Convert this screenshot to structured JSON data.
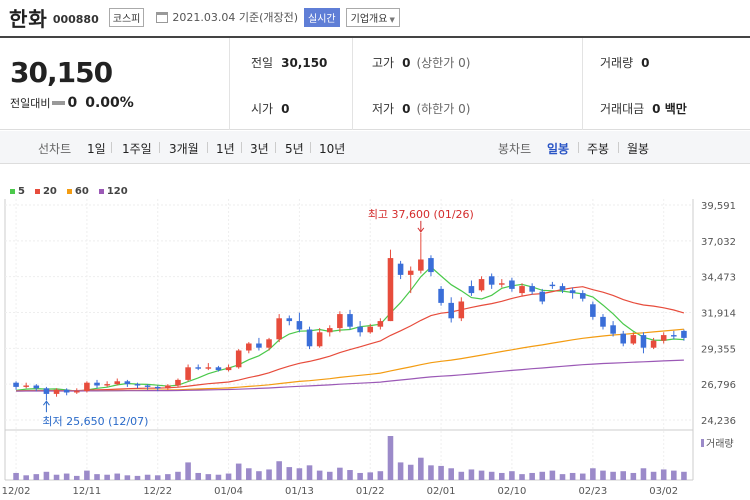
{
  "header": {
    "stock_name": "한화",
    "stock_code": "000880",
    "market": "코스피",
    "date_text": "2021.03.04 기준(개장전)",
    "realtime_label": "실시간",
    "company_info_label": "기업개요"
  },
  "summary": {
    "price": "30,150",
    "change_label": "전일대비",
    "change_value": "0",
    "change_pct": "0.00%",
    "prev_close": {
      "label": "전일",
      "value": "30,150"
    },
    "high": {
      "label": "고가",
      "value": "0",
      "sub": "(상한가 0)"
    },
    "volume": {
      "label": "거래량",
      "value": "0"
    },
    "open": {
      "label": "시가",
      "value": "0"
    },
    "low": {
      "label": "저가",
      "value": "0",
      "sub": "(하한가 0)"
    },
    "trade_amount": {
      "label": "거래대금",
      "value": "0 백만"
    }
  },
  "periods": {
    "line_chart_label": "선차트",
    "line_items": [
      "1일",
      "1주일",
      "3개월",
      "1년",
      "3년",
      "5년",
      "10년"
    ],
    "candle_chart_label": "봉차트",
    "candle_items": [
      "일봉",
      "주봉",
      "월봉"
    ],
    "active_candle": "일봉"
  },
  "legend": [
    {
      "label": "5",
      "color": "#4bc94b"
    },
    {
      "label": "20",
      "color": "#e74c3c"
    },
    {
      "label": "60",
      "color": "#f39c12"
    },
    {
      "label": "120",
      "color": "#9b59b6"
    }
  ],
  "colors": {
    "up": "#e74c3c",
    "down": "#3a6ed8",
    "volume": "#9b8ac9",
    "high_marker": "#d42c2c",
    "low_marker": "#2a6ac9"
  },
  "chart_data": {
    "type": "candlestick",
    "y_ticks": [
      "39,591",
      "37,032",
      "34,473",
      "31,914",
      "29,355",
      "26,796",
      "24,236"
    ],
    "ylim": [
      24236,
      39591
    ],
    "x_ticks": [
      "12/02",
      "12/11",
      "12/22",
      "01/04",
      "01/13",
      "01/22",
      "02/01",
      "02/10",
      "02/23",
      "03/02"
    ],
    "high_annotation": "최고 37,600 (01/26)",
    "low_annotation": "최저 25,650 (12/07)",
    "volume_label": "거래량",
    "candles": [
      {
        "o": 26900,
        "c": 26600,
        "h": 27000,
        "l": 26400
      },
      {
        "o": 26600,
        "c": 26700,
        "h": 26900,
        "l": 26500
      },
      {
        "o": 26700,
        "c": 26500,
        "h": 26800,
        "l": 26300
      },
      {
        "o": 26500,
        "c": 26100,
        "h": 26600,
        "l": 25650
      },
      {
        "o": 26100,
        "c": 26400,
        "h": 26500,
        "l": 25900
      },
      {
        "o": 26400,
        "c": 26200,
        "h": 26500,
        "l": 26000
      },
      {
        "o": 26200,
        "c": 26300,
        "h": 26500,
        "l": 26100
      },
      {
        "o": 26300,
        "c": 26900,
        "h": 27000,
        "l": 26200
      },
      {
        "o": 26900,
        "c": 26700,
        "h": 27100,
        "l": 26500
      },
      {
        "o": 26700,
        "c": 26800,
        "h": 27000,
        "l": 26600
      },
      {
        "o": 26800,
        "c": 27000,
        "h": 27200,
        "l": 26700
      },
      {
        "o": 27000,
        "c": 26800,
        "h": 27100,
        "l": 26600
      },
      {
        "o": 26800,
        "c": 26700,
        "h": 26900,
        "l": 26500
      },
      {
        "o": 26700,
        "c": 26600,
        "h": 26800,
        "l": 26400
      },
      {
        "o": 26600,
        "c": 26500,
        "h": 26700,
        "l": 26300
      },
      {
        "o": 26500,
        "c": 26700,
        "h": 26800,
        "l": 26400
      },
      {
        "o": 26700,
        "c": 27100,
        "h": 27200,
        "l": 26600
      },
      {
        "o": 27100,
        "c": 28000,
        "h": 28200,
        "l": 27000
      },
      {
        "o": 28000,
        "c": 27900,
        "h": 28200,
        "l": 27800
      },
      {
        "o": 27900,
        "c": 28000,
        "h": 28300,
        "l": 27800
      },
      {
        "o": 28000,
        "c": 27800,
        "h": 28100,
        "l": 27700
      },
      {
        "o": 27800,
        "c": 28000,
        "h": 28200,
        "l": 27700
      },
      {
        "o": 28000,
        "c": 29200,
        "h": 29300,
        "l": 27900
      },
      {
        "o": 29200,
        "c": 29700,
        "h": 29800,
        "l": 29000
      },
      {
        "o": 29700,
        "c": 29400,
        "h": 30100,
        "l": 29200
      },
      {
        "o": 29400,
        "c": 30000,
        "h": 30100,
        "l": 29200
      },
      {
        "o": 30000,
        "c": 31500,
        "h": 31800,
        "l": 29800
      },
      {
        "o": 31500,
        "c": 31300,
        "h": 31700,
        "l": 31000
      },
      {
        "o": 31300,
        "c": 30700,
        "h": 31900,
        "l": 30500
      },
      {
        "o": 30700,
        "c": 29500,
        "h": 30900,
        "l": 29300
      },
      {
        "o": 29500,
        "c": 30500,
        "h": 30800,
        "l": 29400
      },
      {
        "o": 30500,
        "c": 30800,
        "h": 31000,
        "l": 30200
      },
      {
        "o": 30800,
        "c": 31800,
        "h": 32000,
        "l": 30500
      },
      {
        "o": 31800,
        "c": 30900,
        "h": 32100,
        "l": 30700
      },
      {
        "o": 30900,
        "c": 30500,
        "h": 31300,
        "l": 30200
      },
      {
        "o": 30500,
        "c": 30900,
        "h": 31100,
        "l": 30400
      },
      {
        "o": 30900,
        "c": 31300,
        "h": 31500,
        "l": 30700
      },
      {
        "o": 31300,
        "c": 35800,
        "h": 36400,
        "l": 31300
      },
      {
        "o": 35400,
        "c": 34600,
        "h": 35600,
        "l": 34300
      },
      {
        "o": 34600,
        "c": 34900,
        "h": 35200,
        "l": 33300
      },
      {
        "o": 34900,
        "c": 35700,
        "h": 37600,
        "l": 34700
      },
      {
        "o": 35800,
        "c": 34800,
        "h": 36000,
        "l": 34500
      },
      {
        "o": 33600,
        "c": 32600,
        "h": 33800,
        "l": 32400
      },
      {
        "o": 32600,
        "c": 31500,
        "h": 33000,
        "l": 31200
      },
      {
        "o": 31500,
        "c": 32700,
        "h": 33000,
        "l": 31300
      },
      {
        "o": 33800,
        "c": 33300,
        "h": 34200,
        "l": 33100
      },
      {
        "o": 33500,
        "c": 34300,
        "h": 34500,
        "l": 33400
      },
      {
        "o": 34500,
        "c": 33900,
        "h": 34700,
        "l": 33600
      },
      {
        "o": 33900,
        "c": 34000,
        "h": 34300,
        "l": 33700
      },
      {
        "o": 34200,
        "c": 33600,
        "h": 34400,
        "l": 33400
      },
      {
        "o": 33300,
        "c": 33800,
        "h": 34000,
        "l": 33100
      },
      {
        "o": 33800,
        "c": 33400,
        "h": 34000,
        "l": 33200
      },
      {
        "o": 33400,
        "c": 32700,
        "h": 33600,
        "l": 32500
      },
      {
        "o": 33900,
        "c": 33800,
        "h": 34100,
        "l": 33600
      },
      {
        "o": 33800,
        "c": 33500,
        "h": 34000,
        "l": 33300
      },
      {
        "o": 33500,
        "c": 33300,
        "h": 33700,
        "l": 32900
      },
      {
        "o": 33300,
        "c": 32900,
        "h": 33500,
        "l": 32700
      },
      {
        "o": 32500,
        "c": 31600,
        "h": 32700,
        "l": 31400
      },
      {
        "o": 31600,
        "c": 30900,
        "h": 31800,
        "l": 30700
      },
      {
        "o": 31000,
        "c": 30400,
        "h": 31300,
        "l": 30200
      },
      {
        "o": 30400,
        "c": 29700,
        "h": 30600,
        "l": 29500
      },
      {
        "o": 29700,
        "c": 30300,
        "h": 30500,
        "l": 29600
      },
      {
        "o": 30300,
        "c": 29400,
        "h": 30500,
        "l": 29000
      },
      {
        "o": 29400,
        "c": 29900,
        "h": 30100,
        "l": 29300
      },
      {
        "o": 29900,
        "c": 30300,
        "h": 30500,
        "l": 29700
      },
      {
        "o": 30300,
        "c": 30200,
        "h": 30600,
        "l": 30000
      },
      {
        "o": 30600,
        "c": 30100,
        "h": 30700,
        "l": 29900
      }
    ],
    "volume": [
      12,
      8,
      10,
      14,
      9,
      11,
      7,
      16,
      10,
      9,
      11,
      8,
      7,
      9,
      8,
      10,
      14,
      30,
      12,
      10,
      9,
      11,
      28,
      20,
      15,
      18,
      32,
      22,
      20,
      25,
      16,
      14,
      21,
      17,
      12,
      13,
      15,
      75,
      30,
      26,
      38,
      25,
      24,
      20,
      14,
      18,
      16,
      14,
      12,
      15,
      10,
      12,
      14,
      16,
      10,
      12,
      11,
      20,
      16,
      14,
      15,
      12,
      20,
      14,
      18,
      16,
      14
    ]
  }
}
